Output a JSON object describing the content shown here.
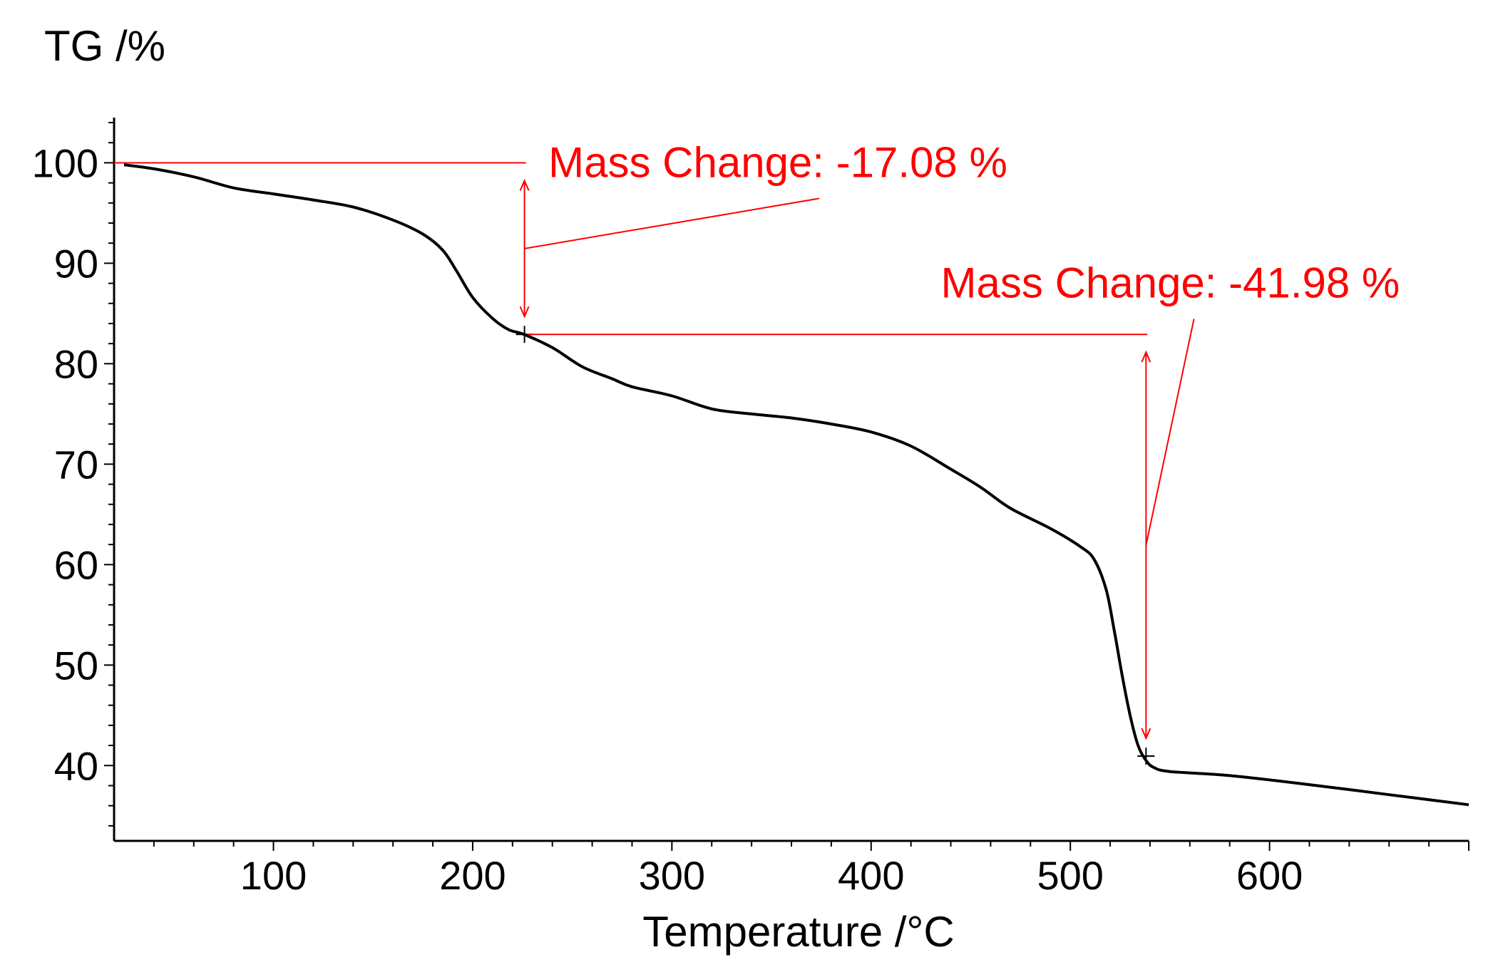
{
  "chart_data": {
    "type": "line",
    "title": "",
    "ylabel": "TG /%",
    "xlabel": "Temperature /°C",
    "xlim": [
      20,
      700
    ],
    "ylim": [
      32.5,
      104.5
    ],
    "x_ticks": [
      100,
      200,
      300,
      400,
      500,
      600
    ],
    "y_ticks": [
      40,
      50,
      60,
      70,
      80,
      90,
      100
    ],
    "grid": false,
    "colors": {
      "curve": "#000000",
      "annotation": "#ff0000",
      "axis": "#000000"
    },
    "series": [
      {
        "name": "TG",
        "x": [
          25,
          40,
          60,
          80,
          100,
          120,
          140,
          160,
          175,
          185,
          192,
          200,
          210,
          218,
          226,
          240,
          255,
          270,
          280,
          300,
          320,
          340,
          360,
          380,
          400,
          420,
          440,
          455,
          470,
          490,
          505,
          512,
          518,
          522,
          526,
          530,
          534,
          538,
          542,
          550,
          580,
          620,
          660,
          700
        ],
        "y": [
          99.8,
          99.4,
          98.6,
          97.5,
          96.9,
          96.3,
          95.6,
          94.3,
          92.9,
          91.3,
          89.2,
          86.6,
          84.5,
          83.4,
          82.9,
          81.6,
          79.7,
          78.5,
          77.7,
          76.8,
          75.5,
          75.0,
          74.6,
          74.0,
          73.2,
          71.8,
          69.5,
          67.7,
          65.6,
          63.6,
          61.8,
          60.5,
          57.5,
          53.5,
          49.0,
          45.0,
          42.0,
          40.5,
          39.8,
          39.4,
          39.0,
          38.1,
          37.1,
          36.1
        ]
      }
    ],
    "annotations": [
      {
        "label": "Mass Change: -17.08 %",
        "ref_x": 20,
        "ref_y": 100.0,
        "mark_x": 226,
        "mark_y": 82.92,
        "label_x": 238,
        "label_y": 100.0
      },
      {
        "label": "Mass Change: -41.98 %",
        "ref_x": 226,
        "ref_y": 82.92,
        "mark_x": 538,
        "mark_y": 40.94,
        "label_x": 435,
        "label_y": 88.0
      }
    ]
  }
}
